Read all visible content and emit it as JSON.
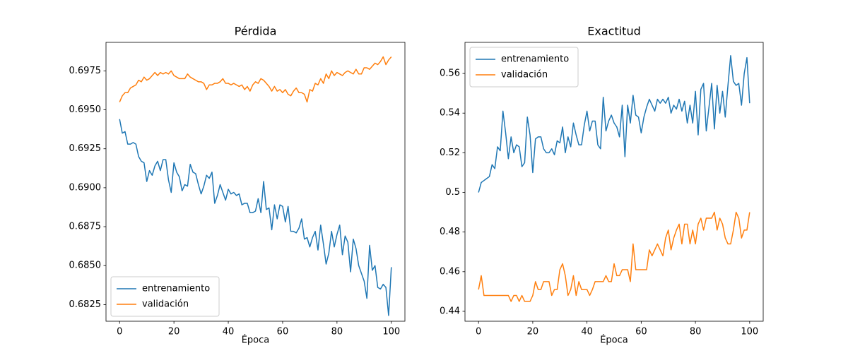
{
  "chart_data": [
    {
      "type": "line",
      "title": "Pérdida",
      "xlabel": "Época",
      "legend": "lower left",
      "xlim": [
        -5,
        105
      ],
      "ylim": [
        0.68143,
        0.69933
      ],
      "xticks": [
        0,
        20,
        40,
        60,
        80,
        100
      ],
      "yticks": [
        0.6825,
        {
          "value": 0.685,
          "label": "0.6850"
        },
        0.6875,
        {
          "value": 0.69,
          "label": "0.6900"
        },
        0.6925,
        {
          "value": 0.695,
          "label": "0.6950"
        },
        0.6975
      ],
      "x": [
        0,
        1,
        2,
        3,
        4,
        5,
        6,
        7,
        8,
        9,
        10,
        11,
        12,
        13,
        14,
        15,
        16,
        17,
        18,
        19,
        20,
        21,
        22,
        23,
        24,
        25,
        26,
        27,
        28,
        29,
        30,
        31,
        32,
        33,
        34,
        35,
        36,
        37,
        38,
        39,
        40,
        41,
        42,
        43,
        44,
        45,
        46,
        47,
        48,
        49,
        50,
        51,
        52,
        53,
        54,
        55,
        56,
        57,
        58,
        59,
        60,
        61,
        62,
        63,
        64,
        65,
        66,
        67,
        68,
        69,
        70,
        71,
        72,
        73,
        74,
        75,
        76,
        77,
        78,
        79,
        80,
        81,
        82,
        83,
        84,
        85,
        86,
        87,
        88,
        89,
        90,
        91,
        92,
        93,
        94,
        95,
        96,
        97,
        98,
        99,
        100
      ],
      "series": [
        {
          "name": "entrenamiento",
          "color": "#1f77b4",
          "values": [
            0.6944,
            0.6935,
            0.6936,
            0.6928,
            0.6928,
            0.6929,
            0.6928,
            0.692,
            0.6917,
            0.6916,
            0.6904,
            0.6911,
            0.6908,
            0.6914,
            0.6917,
            0.6911,
            0.6918,
            0.6918,
            0.6905,
            0.6897,
            0.6916,
            0.691,
            0.6907,
            0.6898,
            0.6902,
            0.6901,
            0.6915,
            0.691,
            0.6909,
            0.6902,
            0.6896,
            0.6901,
            0.6908,
            0.6906,
            0.691,
            0.689,
            0.6895,
            0.6902,
            0.6897,
            0.6892,
            0.6899,
            0.6896,
            0.6897,
            0.6895,
            0.6896,
            0.6889,
            0.689,
            0.689,
            0.6884,
            0.6884,
            0.6885,
            0.6893,
            0.6884,
            0.6904,
            0.6886,
            0.6887,
            0.6873,
            0.6889,
            0.688,
            0.6889,
            0.6888,
            0.6878,
            0.6888,
            0.6872,
            0.6872,
            0.6871,
            0.6874,
            0.688,
            0.6867,
            0.6868,
            0.6862,
            0.6868,
            0.6872,
            0.686,
            0.6876,
            0.6864,
            0.6851,
            0.6858,
            0.6872,
            0.6862,
            0.687,
            0.6876,
            0.6857,
            0.6869,
            0.6865,
            0.6846,
            0.6867,
            0.6861,
            0.685,
            0.6845,
            0.684,
            0.6829,
            0.6863,
            0.6847,
            0.685,
            0.6836,
            0.6835,
            0.6838,
            0.6836,
            0.6818,
            0.6849
          ]
        },
        {
          "name": "validación",
          "color": "#ff7f0e",
          "values": [
            0.6955,
            0.6959,
            0.6961,
            0.6961,
            0.6964,
            0.6965,
            0.6966,
            0.6969,
            0.6968,
            0.6971,
            0.6969,
            0.697,
            0.6972,
            0.6974,
            0.6972,
            0.6974,
            0.6973,
            0.6974,
            0.6973,
            0.6975,
            0.6972,
            0.6971,
            0.697,
            0.697,
            0.697,
            0.6973,
            0.6971,
            0.697,
            0.6969,
            0.6968,
            0.6968,
            0.6967,
            0.6963,
            0.6966,
            0.6966,
            0.6967,
            0.6967,
            0.6968,
            0.697,
            0.6967,
            0.6967,
            0.6966,
            0.6967,
            0.6966,
            0.6965,
            0.6966,
            0.6963,
            0.6965,
            0.6962,
            0.6966,
            0.6968,
            0.6967,
            0.697,
            0.6969,
            0.6967,
            0.6965,
            0.6962,
            0.6965,
            0.6962,
            0.6963,
            0.6961,
            0.6963,
            0.696,
            0.6959,
            0.6962,
            0.6964,
            0.6961,
            0.6961,
            0.696,
            0.6955,
            0.6963,
            0.6962,
            0.6967,
            0.6966,
            0.697,
            0.6967,
            0.6973,
            0.697,
            0.6975,
            0.6972,
            0.6974,
            0.6973,
            0.6972,
            0.6974,
            0.6975,
            0.6974,
            0.6973,
            0.6976,
            0.6973,
            0.6973,
            0.6977,
            0.6977,
            0.6976,
            0.6978,
            0.698,
            0.6979,
            0.6981,
            0.6984,
            0.6979,
            0.6982,
            0.6984
          ]
        }
      ]
    },
    {
      "type": "line",
      "title": "Exactitud",
      "xlabel": "Época",
      "legend": "upper left",
      "xlim": [
        -5,
        105
      ],
      "ylim": [
        0.435,
        0.5757
      ],
      "xticks": [
        0,
        20,
        40,
        60,
        80,
        100
      ],
      "yticks": [
        0.44,
        0.46,
        0.48,
        0.5,
        0.52,
        0.54,
        0.56
      ],
      "x": [
        0,
        1,
        2,
        3,
        4,
        5,
        6,
        7,
        8,
        9,
        10,
        11,
        12,
        13,
        14,
        15,
        16,
        17,
        18,
        19,
        20,
        21,
        22,
        23,
        24,
        25,
        26,
        27,
        28,
        29,
        30,
        31,
        32,
        33,
        34,
        35,
        36,
        37,
        38,
        39,
        40,
        41,
        42,
        43,
        44,
        45,
        46,
        47,
        48,
        49,
        50,
        51,
        52,
        53,
        54,
        55,
        56,
        57,
        58,
        59,
        60,
        61,
        62,
        63,
        64,
        65,
        66,
        67,
        68,
        69,
        70,
        71,
        72,
        73,
        74,
        75,
        76,
        77,
        78,
        79,
        80,
        81,
        82,
        83,
        84,
        85,
        86,
        87,
        88,
        89,
        90,
        91,
        92,
        93,
        94,
        95,
        96,
        97,
        98,
        99,
        100
      ],
      "series": [
        {
          "name": "entrenamiento",
          "color": "#1f77b4",
          "values": [
            0.5,
            0.505,
            0.506,
            0.507,
            0.508,
            0.514,
            0.512,
            0.523,
            0.521,
            0.541,
            0.53,
            0.517,
            0.528,
            0.52,
            0.524,
            0.523,
            0.513,
            0.515,
            0.538,
            0.529,
            0.51,
            0.527,
            0.528,
            0.528,
            0.522,
            0.52,
            0.52,
            0.522,
            0.519,
            0.526,
            0.525,
            0.533,
            0.52,
            0.528,
            0.523,
            0.535,
            0.529,
            0.524,
            0.524,
            0.534,
            0.541,
            0.531,
            0.536,
            0.536,
            0.524,
            0.522,
            0.548,
            0.531,
            0.536,
            0.539,
            0.535,
            0.533,
            0.528,
            0.544,
            0.518,
            0.544,
            0.535,
            0.549,
            0.539,
            0.538,
            0.53,
            0.538,
            0.543,
            0.547,
            0.544,
            0.541,
            0.547,
            0.545,
            0.547,
            0.545,
            0.548,
            0.54,
            0.544,
            0.542,
            0.547,
            0.541,
            0.546,
            0.535,
            0.544,
            0.535,
            0.551,
            0.529,
            0.552,
            0.555,
            0.531,
            0.543,
            0.555,
            0.532,
            0.554,
            0.54,
            0.551,
            0.538,
            0.554,
            0.569,
            0.556,
            0.554,
            0.555,
            0.544,
            0.56,
            0.568,
            0.545
          ]
        },
        {
          "name": "validación",
          "color": "#ff7f0e",
          "values": [
            0.451,
            0.458,
            0.448,
            0.448,
            0.448,
            0.448,
            0.448,
            0.448,
            0.448,
            0.448,
            0.448,
            0.448,
            0.445,
            0.448,
            0.448,
            0.445,
            0.448,
            0.445,
            0.445,
            0.445,
            0.448,
            0.455,
            0.451,
            0.451,
            0.455,
            0.455,
            0.455,
            0.448,
            0.451,
            0.451,
            0.461,
            0.464,
            0.458,
            0.448,
            0.451,
            0.458,
            0.448,
            0.455,
            0.451,
            0.451,
            0.451,
            0.448,
            0.451,
            0.455,
            0.455,
            0.455,
            0.455,
            0.458,
            0.455,
            0.455,
            0.464,
            0.458,
            0.458,
            0.461,
            0.461,
            0.461,
            0.455,
            0.474,
            0.461,
            0.461,
            0.461,
            0.461,
            0.461,
            0.471,
            0.468,
            0.471,
            0.474,
            0.471,
            0.468,
            0.477,
            0.481,
            0.471,
            0.477,
            0.481,
            0.484,
            0.474,
            0.484,
            0.484,
            0.474,
            0.481,
            0.474,
            0.484,
            0.487,
            0.481,
            0.487,
            0.487,
            0.487,
            0.49,
            0.481,
            0.487,
            0.484,
            0.477,
            0.474,
            0.474,
            0.481,
            0.49,
            0.487,
            0.477,
            0.481,
            0.481,
            0.49
          ]
        }
      ]
    }
  ]
}
